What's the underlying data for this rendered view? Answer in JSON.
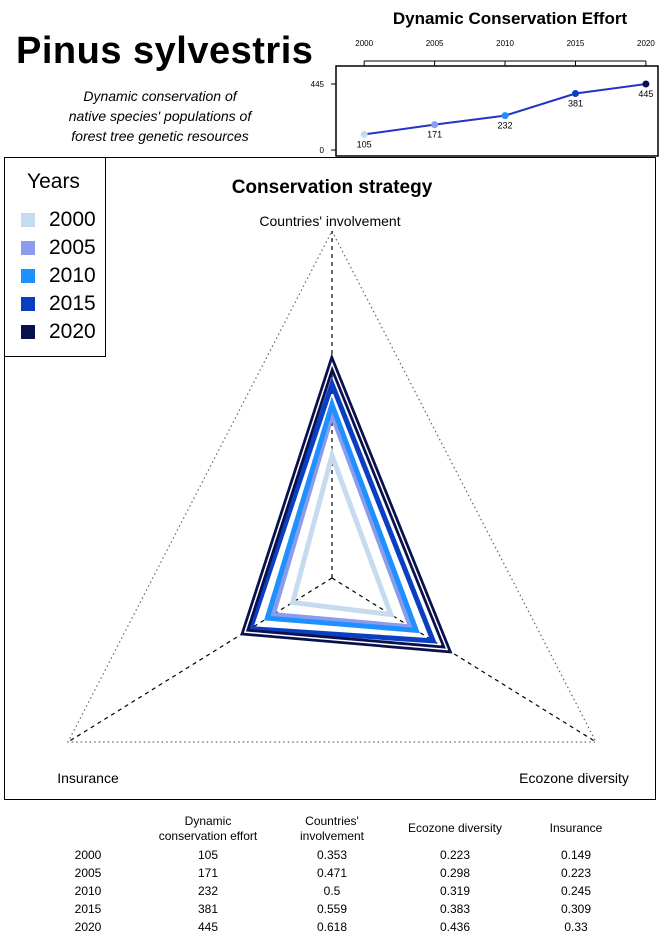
{
  "title": "Pinus sylvestris",
  "subtitle_lines": [
    "Dynamic conservation of",
    "native species' populations of",
    "forest tree genetic resources"
  ],
  "colors": {
    "2000": "#c6dbef",
    "2005": "#8c9cec",
    "2010": "#1e90ff",
    "2015": "#0b3fc2",
    "2020": "#08104e",
    "line": "#2233c8"
  },
  "chart_data": [
    {
      "type": "line",
      "title": "Dynamic Conservation Effort",
      "x": [
        2000,
        2005,
        2010,
        2015,
        2020
      ],
      "x_tick_labels": [
        "2000",
        "2005",
        "2010",
        "2015",
        "2020"
      ],
      "y": [
        105,
        171,
        232,
        381,
        445
      ],
      "y_ticks": [
        0,
        445
      ],
      "ylim": [
        0,
        445
      ],
      "data_labels": [
        "105",
        "171",
        "232",
        "381",
        "445"
      ],
      "x_axis_position": "top"
    },
    {
      "type": "radar",
      "title": "Conservation strategy",
      "axes": [
        "Countries' involvement",
        "Ecozone diversity",
        "Insurance"
      ],
      "rlim": [
        0,
        1
      ],
      "legend_title": "Years",
      "legend_placement": "top-left",
      "series": [
        {
          "name": "2000",
          "values": [
            0.353,
            0.223,
            0.149
          ]
        },
        {
          "name": "2005",
          "values": [
            0.471,
            0.298,
            0.223
          ]
        },
        {
          "name": "2010",
          "values": [
            0.5,
            0.319,
            0.245
          ]
        },
        {
          "name": "2015",
          "values": [
            0.559,
            0.383,
            0.309
          ]
        },
        {
          "name": "2020",
          "values": [
            0.618,
            0.436,
            0.33
          ]
        }
      ]
    },
    {
      "type": "table",
      "columns": [
        "",
        "Dynamic\nconservation effort",
        "Countries'\ninvolvement",
        "Ecozone diversity",
        "Insurance"
      ],
      "rows": [
        [
          "2000",
          "105",
          "0.353",
          "0.223",
          "0.149"
        ],
        [
          "2005",
          "171",
          "0.471",
          "0.298",
          "0.223"
        ],
        [
          "2010",
          "232",
          "0.5",
          "0.319",
          "0.245"
        ],
        [
          "2015",
          "381",
          "0.559",
          "0.383",
          "0.309"
        ],
        [
          "2020",
          "445",
          "0.618",
          "0.436",
          "0.33"
        ]
      ]
    }
  ]
}
